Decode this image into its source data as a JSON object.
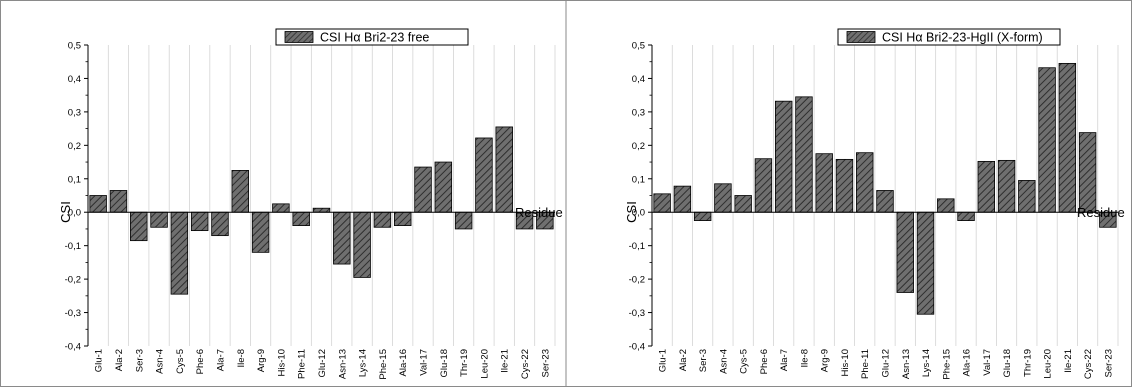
{
  "chart_data": [
    {
      "type": "bar",
      "legend": "CSI Hα Bri2-23 free",
      "ylabel": "CSI",
      "xlabel": "Residue",
      "ylim": [
        -0.4,
        0.5
      ],
      "yticks": [
        "-0,4",
        "-0,3",
        "-0,2",
        "-0,1",
        "0,0",
        "0,1",
        "0,2",
        "0,3",
        "0,4",
        "0,5"
      ],
      "categories": [
        "Glu-1",
        "Ala-2",
        "Ser-3",
        "Asn-4",
        "Cys-5",
        "Phe-6",
        "Ala-7",
        "Ile-8",
        "Arg-9",
        "His-10",
        "Phe-11",
        "Glu-12",
        "Asn-13",
        "Lys-14",
        "Phe-15",
        "Ala-16",
        "Val-17",
        "Glu-18",
        "Thr-19",
        "Leu-20",
        "Ile-21",
        "Cys-22",
        "Ser-23"
      ],
      "values": [
        0.05,
        0.065,
        -0.085,
        -0.045,
        -0.245,
        -0.055,
        -0.07,
        0.125,
        -0.12,
        0.025,
        -0.04,
        0.012,
        -0.155,
        -0.195,
        -0.045,
        -0.04,
        0.135,
        0.15,
        -0.05,
        0.222,
        0.255,
        -0.05,
        -0.05
      ],
      "legend_position": "top-right",
      "bar_fill": "hatched",
      "bar_color": "#5a5a5a",
      "grid": false
    },
    {
      "type": "bar",
      "legend": "CSI Hα Bri2-23-HgII (X-form)",
      "ylabel": "CSI",
      "xlabel": "Residue",
      "ylim": [
        -0.4,
        0.5
      ],
      "yticks": [
        "-0,4",
        "-0,3",
        "-0,2",
        "-0,1",
        "0,0",
        "0,1",
        "0,2",
        "0,3",
        "0,4",
        "0,5"
      ],
      "categories": [
        "Glu-1",
        "Ala-2",
        "Ser-3",
        "Asn-4",
        "Cys-5",
        "Phe-6",
        "Ala-7",
        "Ile-8",
        "Arg-9",
        "His-10",
        "Phe-11",
        "Glu-12",
        "Asn-13",
        "Lys-14",
        "Phe-15",
        "Ala-16",
        "Val-17",
        "Glu-18",
        "Thr-19",
        "Leu-20",
        "Ile-21",
        "Cys-22",
        "Ser-23"
      ],
      "values": [
        0.055,
        0.078,
        -0.025,
        0.085,
        0.05,
        0.16,
        0.332,
        0.345,
        0.175,
        0.158,
        0.178,
        0.065,
        -0.24,
        -0.305,
        0.04,
        -0.025,
        0.152,
        0.155,
        0.095,
        0.432,
        0.445,
        0.238,
        -0.045
      ],
      "legend_position": "top-right",
      "bar_fill": "hatched",
      "bar_color": "#5a5a5a",
      "grid": false
    }
  ]
}
